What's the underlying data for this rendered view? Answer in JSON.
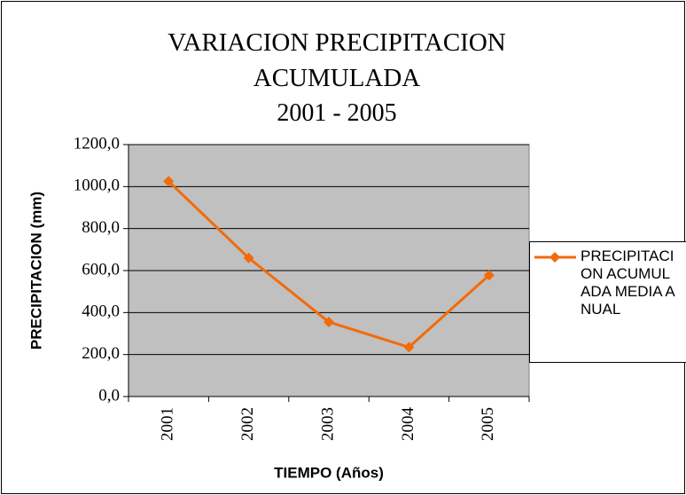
{
  "chart_data": {
    "type": "line",
    "title": "VARIACION PRECIPITACION ACUMULADA",
    "subtitle": "2001 - 2005",
    "x_label": "TIEMPO (Años)",
    "y_label": "PRECIPITACION (mm)",
    "categories": [
      "2001",
      "2002",
      "2003",
      "2004",
      "2005"
    ],
    "series": [
      {
        "name": "PRECIPITACION ACUMULADA MEDIA ANUAL",
        "color": "#f26b0a",
        "values": [
          1025,
          660,
          355,
          235,
          578
        ]
      }
    ],
    "ylim": [
      0,
      1200
    ],
    "yticks": [
      {
        "value": 0,
        "label": "0,0"
      },
      {
        "value": 200,
        "label": "200,0"
      },
      {
        "value": 400,
        "label": "400,0"
      },
      {
        "value": 600,
        "label": "600,0"
      },
      {
        "value": 800,
        "label": "800,0"
      },
      {
        "value": 1000,
        "label": "1000,0"
      },
      {
        "value": 1200,
        "label": "1200,0"
      }
    ],
    "grid": true,
    "plot_background": "#c0c0c0",
    "legend": "right"
  }
}
